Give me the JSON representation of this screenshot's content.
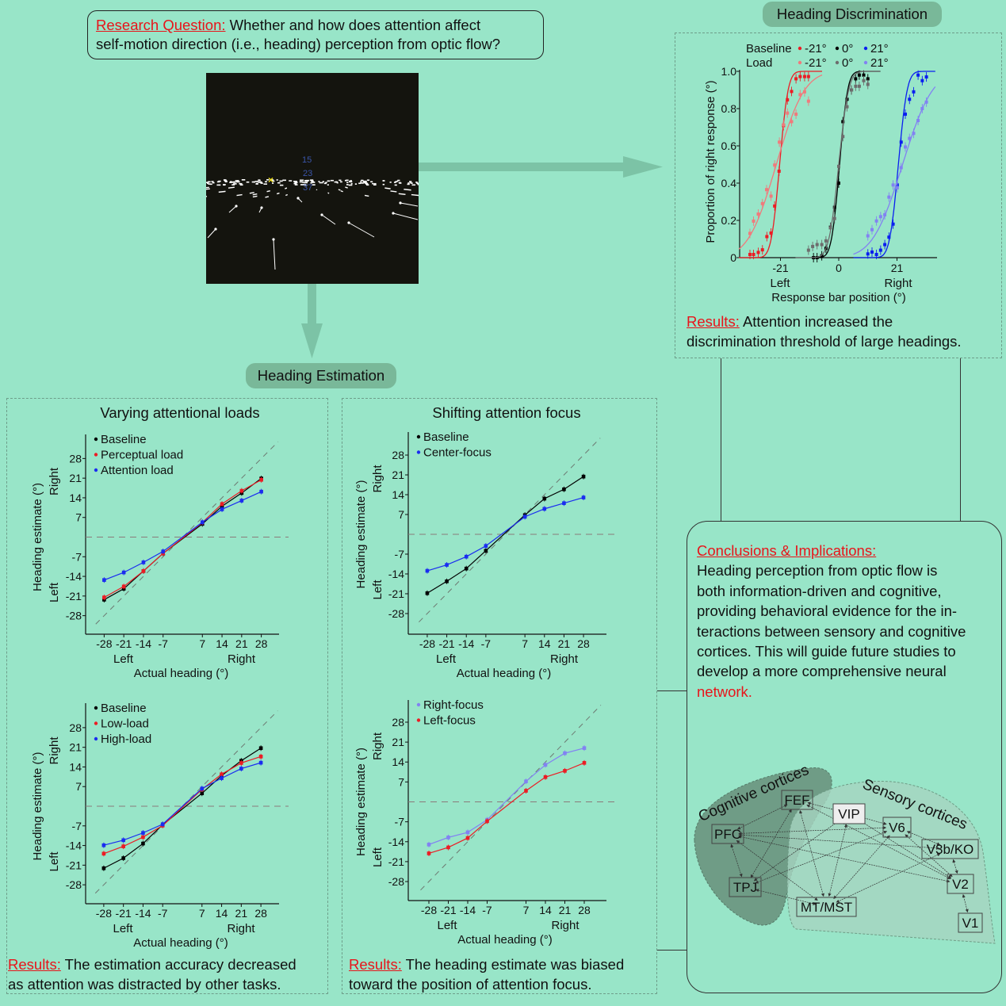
{
  "research_question": {
    "label": "Research Question:",
    "line1": " Whether and how does attention affect",
    "line2": "self-motion direction (i.e., heading) perception from optic flow?"
  },
  "stimulus": {
    "numbers": [
      "15",
      "23",
      "37"
    ],
    "number_color": "#3a55a8",
    "fixation_color": "#f2e21a",
    "fixation_icon": "x-mark"
  },
  "discrimination": {
    "title": "Heading Discrimination",
    "results_label": "Results:",
    "results_line1": " Attention increased the",
    "results_line2": "discrimination threshold of large headings."
  },
  "estimation": {
    "title": "Heading Estimation",
    "left_results_label": "Results:",
    "left_results_line1": " The estimation accuracy decreased",
    "left_results_line2": "as attention was distracted by other tasks.",
    "right_results_label": "Results:",
    "right_results_line1": " The heading estimate was biased",
    "right_results_line2": "toward the position of attention focus."
  },
  "conclusions": {
    "heading": "Conclusions & Implications:",
    "lines": [
      "Heading perception from optic flow is",
      "both information-driven and cognitive,",
      "providing behavioral evidence for the in-",
      "teractions between sensory and cognitive",
      "cortices. This will guide future studies to",
      "develop a more comprehensive neural"
    ],
    "highlight": "network."
  },
  "network_diagram": {
    "regions": [
      {
        "label": "Cognitive cortices",
        "color": "#6f9c86"
      },
      {
        "label": "Sensory cortices",
        "color": "#a6d5c0"
      }
    ],
    "nodes": [
      "FEF",
      "VIP",
      "V6",
      "PFC",
      "V3b/KO",
      "TPJ",
      "V2",
      "MT/MST",
      "V1"
    ],
    "highlighted_node": "VIP",
    "connections": [
      [
        "FEF",
        "PFC"
      ],
      [
        "FEF",
        "VIP"
      ],
      [
        "FEF",
        "TPJ"
      ],
      [
        "FEF",
        "MT/MST"
      ],
      [
        "FEF",
        "V2"
      ],
      [
        "PFC",
        "TPJ"
      ],
      [
        "PFC",
        "V6"
      ],
      [
        "PFC",
        "V3b/KO"
      ],
      [
        "PFC",
        "MT/MST"
      ],
      [
        "PFC",
        "V2"
      ],
      [
        "TPJ",
        "MT/MST"
      ],
      [
        "TPJ",
        "VIP"
      ],
      [
        "TPJ",
        "V6"
      ],
      [
        "VIP",
        "V6"
      ],
      [
        "VIP",
        "MT/MST"
      ],
      [
        "VIP",
        "V2"
      ],
      [
        "V6",
        "MT/MST"
      ],
      [
        "V6",
        "V3b/KO"
      ],
      [
        "V6",
        "V2"
      ],
      [
        "V3b/KO",
        "V2"
      ],
      [
        "V3b/KO",
        "MT/MST"
      ],
      [
        "V1",
        "V2"
      ]
    ]
  },
  "colors": {
    "background": "#98e5c8",
    "pill": "#79b899",
    "accent_red": "#e8141a",
    "arrow": "#7cc3a6"
  },
  "chart_data": [
    {
      "type": "scatter",
      "xlabel": "Response bar position (°)",
      "ylabel": "Proportion of right response (°)",
      "xticks": [
        "-21",
        "0",
        "21"
      ],
      "xtick_values": [
        -21,
        0,
        21
      ],
      "x_side_labels": [
        "Left",
        "Right"
      ],
      "yticks": [
        "1.0",
        "0.8",
        "0.6",
        "0.4",
        "0.2",
        "0"
      ],
      "ytick_values": [
        1.0,
        0.8,
        0.6,
        0.4,
        0.2,
        0
      ],
      "xlim": [
        -36,
        35
      ],
      "ylim": [
        0,
        1
      ],
      "legend_rows": [
        "Baseline",
        "Load"
      ],
      "series": [
        {
          "condition": "Baseline",
          "label": "-21°",
          "color": "#ec1c24",
          "fit": {
            "mu": -21.3,
            "sigma": 2.4,
            "range": [
              -36,
              -6
            ]
          },
          "points": [
            [
              -32,
              0.017
            ],
            [
              -30.7,
              0.017
            ],
            [
              -29,
              0.028
            ],
            [
              -27.5,
              0.042
            ],
            [
              -25.9,
              0.113
            ],
            [
              -24.4,
              0.132
            ],
            [
              -23.1,
              0.277
            ],
            [
              -21.5,
              0.464
            ],
            [
              -19.9,
              0.709
            ],
            [
              -18.5,
              0.847
            ],
            [
              -17,
              0.892
            ],
            [
              -15.4,
              0.96
            ],
            [
              -13.9,
              0.972
            ],
            [
              -12.3,
              0.972
            ],
            [
              -10.9,
              0.972
            ]
          ]
        },
        {
          "condition": "Baseline",
          "label": "0°",
          "color": "#000000",
          "fit": {
            "mu": 0.3,
            "sigma": 2.3,
            "range": [
              -9.5,
              15
            ]
          },
          "points": [
            [
              -9.1,
              0
            ],
            [
              -7.8,
              0
            ],
            [
              -6.1,
              0.01
            ],
            [
              -4.6,
              0.05
            ],
            [
              -3,
              0.163
            ],
            [
              -1.5,
              0.27
            ],
            [
              0,
              0.4
            ],
            [
              1.5,
              0.73
            ],
            [
              3,
              0.85
            ],
            [
              4.6,
              0.9
            ],
            [
              6.1,
              0.96
            ],
            [
              7.4,
              0.98
            ],
            [
              9,
              0.98
            ],
            [
              10.5,
              0.96
            ]
          ]
        },
        {
          "condition": "Baseline",
          "label": "21°",
          "color": "#0a1ef0",
          "fit": {
            "mu": 21.5,
            "sigma": 2.5,
            "range": [
              5.3,
              35
            ]
          },
          "points": [
            [
              10.5,
              0.02
            ],
            [
              12,
              0.03
            ],
            [
              13.6,
              0.017
            ],
            [
              15.1,
              0.04
            ],
            [
              16.6,
              0.07
            ],
            [
              18.1,
              0.11
            ],
            [
              19.6,
              0.18
            ],
            [
              21.1,
              0.39
            ],
            [
              22.5,
              0.62
            ],
            [
              24,
              0.77
            ],
            [
              25.5,
              0.85
            ],
            [
              27,
              0.89
            ],
            [
              28.6,
              0.98
            ],
            [
              30.1,
              0.95
            ],
            [
              31.6,
              0.97
            ]
          ]
        },
        {
          "condition": "Load",
          "label": "-21°",
          "color": "#f07a7c",
          "fit": {
            "mu": -22.5,
            "sigma": 8,
            "range": [
              -36,
              -6
            ]
          },
          "points": [
            [
              -32,
              0.13
            ],
            [
              -30.7,
              0.196
            ],
            [
              -29,
              0.234
            ],
            [
              -27.5,
              0.29
            ],
            [
              -26,
              0.365
            ],
            [
              -24.4,
              0.33
            ],
            [
              -23.1,
              0.497
            ],
            [
              -21.4,
              0.62
            ],
            [
              -19.9,
              0.713
            ],
            [
              -18.5,
              0.776
            ],
            [
              -17,
              0.73
            ],
            [
              -15.4,
              0.77
            ],
            [
              -13.9,
              0.875
            ],
            [
              -12.3,
              0.89
            ],
            [
              -10.9,
              0.84
            ]
          ]
        },
        {
          "condition": "Load",
          "label": "0°",
          "color": "#6d6d6d",
          "fit": {
            "mu": 0,
            "sigma": 2.8,
            "range": [
              -15.6,
              15
            ]
          },
          "points": [
            [
              -10.9,
              0.04
            ],
            [
              -9.4,
              0.06
            ],
            [
              -7.8,
              0.07
            ],
            [
              -6.1,
              0.07
            ],
            [
              -4.6,
              0.09
            ],
            [
              -3,
              0.16
            ],
            [
              -1.5,
              0.21
            ],
            [
              0,
              0.49
            ],
            [
              1.5,
              0.65
            ],
            [
              3,
              0.81
            ],
            [
              4.6,
              0.9
            ],
            [
              6.1,
              0.92
            ],
            [
              7.4,
              0.92
            ],
            [
              9,
              0.95
            ],
            [
              10.5,
              0.93
            ]
          ]
        },
        {
          "condition": "Load",
          "label": "21°",
          "color": "#8282f2",
          "fit": {
            "mu": 23,
            "sigma": 8.5,
            "range": [
              5.3,
              35
            ]
          },
          "points": [
            [
              10.5,
              0.117
            ],
            [
              12,
              0.15
            ],
            [
              13.6,
              0.197
            ],
            [
              15.1,
              0.22
            ],
            [
              16.6,
              0.23
            ],
            [
              18.1,
              0.325
            ],
            [
              19.6,
              0.39
            ],
            [
              21.1,
              0.375
            ],
            [
              22.5,
              0.483
            ],
            [
              24,
              0.594
            ],
            [
              25.5,
              0.64
            ],
            [
              27,
              0.667
            ],
            [
              28.6,
              0.736
            ],
            [
              30.1,
              0.8
            ],
            [
              31.6,
              0.835
            ]
          ]
        }
      ]
    },
    {
      "type": "line",
      "title": "Varying attentional loads",
      "xlabel": "Actual heading (°)",
      "ylabel": "Heading estimate (°)",
      "x_side_labels": [
        "Left",
        "Right"
      ],
      "y_side_labels": [
        "Left",
        "Right"
      ],
      "x": [
        -28,
        -21,
        -14,
        -7,
        7,
        14,
        21,
        28
      ],
      "xticks": [
        "-28",
        "-21",
        "-14",
        "-7",
        "7",
        "14",
        "21",
        "28"
      ],
      "yticks": [
        "28",
        "21",
        "14",
        "7",
        "-7",
        "-14",
        "-21",
        "-28"
      ],
      "ytick_values": [
        28,
        21,
        14,
        7,
        -7,
        -14,
        -21,
        -28
      ],
      "reference_lines": [
        "identity",
        "zero"
      ],
      "legend": "top-left",
      "series": [
        {
          "name": "Baseline",
          "color": "#000000",
          "values": [
            -22.3,
            -18.4,
            -12.1,
            -5.8,
            4.7,
            11,
            15.7,
            20.9
          ]
        },
        {
          "name": "Perceptual load",
          "color": "#ec1c24",
          "values": [
            -21.5,
            -17.6,
            -12.1,
            -5.8,
            5.2,
            11.8,
            16.5,
            20.4
          ]
        },
        {
          "name": "Attention load",
          "color": "#1a2cf0",
          "values": [
            -15.3,
            -12.6,
            -9,
            -5.1,
            5.3,
            9.9,
            13,
            16.2
          ]
        }
      ]
    },
    {
      "type": "line",
      "title": "Shifting attention focus",
      "xlabel": "Actual heading (°)",
      "ylabel": "Heading estimate (°)",
      "x_side_labels": [
        "Left",
        "Right"
      ],
      "y_side_labels": [
        "Left",
        "Right"
      ],
      "x": [
        -28,
        -21,
        -14,
        -7,
        7,
        14,
        21,
        28
      ],
      "xticks": [
        "-28",
        "-21",
        "-14",
        "-7",
        "7",
        "14",
        "21",
        "28"
      ],
      "yticks": [
        "28",
        "21",
        "14",
        "7",
        "-7",
        "-14",
        "-21",
        "-28"
      ],
      "ytick_values": [
        28,
        21,
        14,
        7,
        -7,
        -14,
        -21,
        -28
      ],
      "reference_lines": [
        "identity",
        "zero"
      ],
      "legend": "top-left",
      "series": [
        {
          "name": "Baseline",
          "color": "#000000",
          "values": [
            -20.8,
            -16.6,
            -12.1,
            -5.8,
            6.8,
            12.6,
            15.9,
            20.4
          ]
        },
        {
          "name": "Center-focus",
          "color": "#1a2cf0",
          "values": [
            -12.9,
            -10.8,
            -7.9,
            -4.1,
            6.2,
            9,
            11,
            13
          ]
        }
      ]
    },
    {
      "type": "line",
      "title": "",
      "xlabel": "Actual heading (°)",
      "ylabel": "Heading estimate (°)",
      "x_side_labels": [
        "Left",
        "Right"
      ],
      "y_side_labels": [
        "Left",
        "Right"
      ],
      "x": [
        -28,
        -21,
        -14,
        -7,
        7,
        14,
        21,
        28
      ],
      "xticks": [
        "-28",
        "-21",
        "-14",
        "-7",
        "7",
        "14",
        "21",
        "28"
      ],
      "yticks": [
        "28",
        "21",
        "14",
        "7",
        "-7",
        "-14",
        "-21",
        "-28"
      ],
      "ytick_values": [
        28,
        21,
        14,
        7,
        -7,
        -14,
        -21,
        -28
      ],
      "reference_lines": [
        "identity",
        "zero"
      ],
      "legend": "top-left",
      "series": [
        {
          "name": "Baseline",
          "color": "#000000",
          "values": [
            -22.1,
            -18.5,
            -13.3,
            -6.6,
            4.6,
            10.9,
            16.2,
            20.7
          ]
        },
        {
          "name": "Low-load",
          "color": "#ec1c24",
          "values": [
            -16.9,
            -14.3,
            -11,
            -6.9,
            6,
            11.4,
            15.4,
            17.7
          ]
        },
        {
          "name": "High-load",
          "color": "#1a2cf0",
          "values": [
            -13.9,
            -12.1,
            -9.5,
            -6.4,
            6.3,
            10,
            13.4,
            15.5
          ]
        }
      ]
    },
    {
      "type": "line",
      "title": "",
      "xlabel": "Actual heading (°)",
      "ylabel": "Heading estimate (°)",
      "x_side_labels": [
        "Left",
        "Right"
      ],
      "y_side_labels": [
        "Left",
        "Right"
      ],
      "x": [
        -28,
        -21,
        -14,
        -7,
        7,
        14,
        21,
        28
      ],
      "xticks": [
        "-28",
        "-21",
        "-14",
        "-7",
        "7",
        "14",
        "21",
        "28"
      ],
      "yticks": [
        "28",
        "21",
        "14",
        "7",
        "-7",
        "-14",
        "-21",
        "-28"
      ],
      "ytick_values": [
        28,
        21,
        14,
        7,
        -7,
        -14,
        -21,
        -28
      ],
      "reference_lines": [
        "identity",
        "zero"
      ],
      "legend": "top-left",
      "series": [
        {
          "name": "Right-focus",
          "color": "#8282f2",
          "values": [
            -15,
            -12.5,
            -10.7,
            -6.3,
            7.2,
            13,
            17.1,
            18.9
          ]
        },
        {
          "name": "Left-focus",
          "color": "#ec1c24",
          "values": [
            -18.1,
            -16,
            -12.7,
            -6.8,
            3.9,
            8.7,
            10.9,
            13.7
          ]
        }
      ]
    }
  ]
}
